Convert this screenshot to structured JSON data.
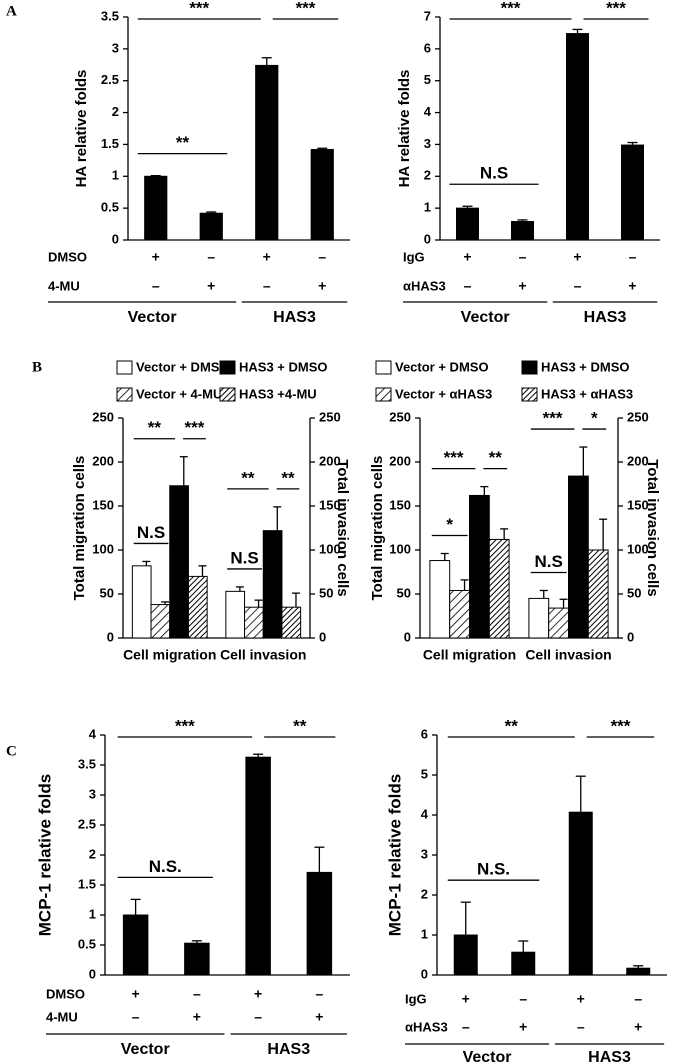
{
  "chart_data": [
    {
      "type": "bar",
      "panel": "A",
      "ylabel": "HA relative folds",
      "values": [
        1.0,
        0.42,
        2.74,
        1.42
      ],
      "errors": [
        0.01,
        0.02,
        0.12,
        0.02
      ],
      "color": "#000000",
      "ylim": [
        0,
        3.5
      ],
      "yticks": [
        0,
        0.5,
        1,
        1.5,
        2,
        2.5,
        3,
        3.5
      ],
      "rows": [
        {
          "label": "DMSO",
          "marks": [
            "+",
            "–",
            "+",
            "–"
          ]
        },
        {
          "label": "4-MU",
          "marks": [
            "–",
            "+",
            "–",
            "+"
          ]
        }
      ],
      "groups": [
        "Vector",
        "HAS3"
      ],
      "significance": [
        "**",
        "***",
        "***"
      ]
    },
    {
      "type": "bar",
      "ylabel": "HA relative folds",
      "values": [
        1.0,
        0.58,
        6.48,
        2.98
      ],
      "errors": [
        0.06,
        0.05,
        0.13,
        0.08
      ],
      "color": "#000000",
      "ylim": [
        0,
        7
      ],
      "yticks": [
        0,
        1,
        2,
        3,
        4,
        5,
        6,
        7
      ],
      "rows": [
        {
          "label": "IgG",
          "marks": [
            "+",
            "–",
            "+",
            "–"
          ]
        },
        {
          "label": "αHAS3",
          "marks": [
            "–",
            "+",
            "–",
            "+"
          ]
        }
      ],
      "groups": [
        "Vector",
        "HAS3"
      ],
      "significance": [
        "N.S",
        "***",
        "***"
      ]
    },
    {
      "type": "grouped_bar",
      "panel": "B",
      "ylabel": "Total migration cells",
      "y2label": "Total invasion cells",
      "categories": [
        "Cell migration",
        "Cell invasion"
      ],
      "category_axes": [
        "y",
        "y2"
      ],
      "ylim": [
        0,
        250
      ],
      "yticks": [
        0,
        50,
        100,
        150,
        200,
        250
      ],
      "y2lim": [
        0,
        250
      ],
      "y2ticks": [
        0,
        50,
        100,
        150,
        200,
        250
      ],
      "series": [
        {
          "name": "Vector + DMSO",
          "color": "#ffffff",
          "values": [
            82,
            53
          ],
          "errors": [
            5,
            5
          ]
        },
        {
          "name": "Vector + 4-MU",
          "color": "#ffffff",
          "hatch": "light",
          "values": [
            38,
            35
          ],
          "errors": [
            3,
            8
          ]
        },
        {
          "name": "HAS3 + DMSO",
          "color": "#000000",
          "values": [
            173,
            122
          ],
          "errors": [
            33,
            27
          ]
        },
        {
          "name": "HAS3 +4-MU",
          "color": "#ffffff",
          "hatch": "dense",
          "values": [
            70,
            35
          ],
          "errors": [
            12,
            16
          ]
        }
      ],
      "significance": [
        [
          "N.S",
          "**",
          "***"
        ],
        [
          "N.S",
          "**",
          "**"
        ]
      ]
    },
    {
      "type": "grouped_bar",
      "ylabel": "Total migration cells",
      "y2label": "Total invasion cells",
      "categories": [
        "Cell migration",
        "Cell invasion"
      ],
      "category_axes": [
        "y",
        "y2"
      ],
      "ylim": [
        0,
        250
      ],
      "yticks": [
        0,
        50,
        100,
        150,
        200,
        250
      ],
      "y2lim": [
        0,
        250
      ],
      "y2ticks": [
        0,
        50,
        100,
        150,
        200,
        250
      ],
      "series": [
        {
          "name": "Vector + DMSO",
          "color": "#ffffff",
          "values": [
            88,
            45
          ],
          "errors": [
            8,
            9
          ]
        },
        {
          "name": "Vector + αHAS3",
          "color": "#ffffff",
          "hatch": "light",
          "values": [
            54,
            34
          ],
          "errors": [
            12,
            10
          ]
        },
        {
          "name": "HAS3 + DMSO",
          "color": "#000000",
          "values": [
            162,
            184
          ],
          "errors": [
            10,
            33
          ]
        },
        {
          "name": "HAS3 + αHAS3",
          "color": "#ffffff",
          "hatch": "dense",
          "values": [
            112,
            100
          ],
          "errors": [
            12,
            35
          ]
        }
      ],
      "significance": [
        [
          "*",
          "***",
          "**"
        ],
        [
          "N.S",
          "***",
          "*"
        ]
      ]
    },
    {
      "type": "bar",
      "panel": "C",
      "ylabel": "MCP-1 relative folds",
      "values": [
        1.0,
        0.53,
        3.63,
        1.71
      ],
      "errors": [
        0.26,
        0.04,
        0.05,
        0.42
      ],
      "color": "#000000",
      "ylim": [
        0,
        4
      ],
      "yticks": [
        0,
        0.5,
        1,
        1.5,
        2,
        2.5,
        3,
        3.5,
        4
      ],
      "rows": [
        {
          "label": "DMSO",
          "marks": [
            "+",
            "–",
            "+",
            "–"
          ]
        },
        {
          "label": "4-MU",
          "marks": [
            "–",
            "+",
            "–",
            "+"
          ]
        }
      ],
      "groups": [
        "Vector",
        "HAS3"
      ],
      "significance": [
        "N.S.",
        "***",
        "**"
      ]
    },
    {
      "type": "bar",
      "ylabel": "MCP-1 relative folds",
      "values": [
        1.0,
        0.57,
        4.07,
        0.17
      ],
      "errors": [
        0.82,
        0.28,
        0.9,
        0.06
      ],
      "color": "#000000",
      "ylim": [
        0,
        6
      ],
      "yticks": [
        0,
        1,
        2,
        3,
        4,
        5,
        6
      ],
      "rows": [
        {
          "label": "IgG",
          "marks": [
            "+",
            "–",
            "+",
            "–"
          ]
        },
        {
          "label": "αHAS3",
          "marks": [
            "–",
            "+",
            "–",
            "+"
          ]
        }
      ],
      "groups": [
        "Vector",
        "HAS3"
      ],
      "significance": [
        "N.S.",
        "**",
        "***"
      ]
    }
  ]
}
